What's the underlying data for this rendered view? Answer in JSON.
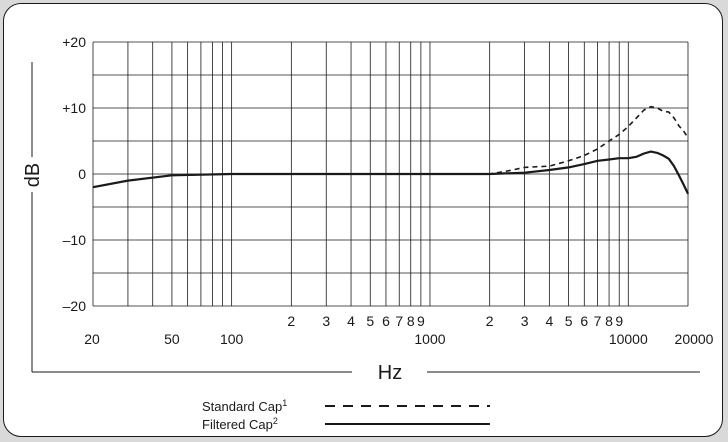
{
  "chart_data": {
    "type": "line",
    "xlabel": "Hz",
    "ylabel": "dB",
    "x_scale": "log",
    "xlim": [
      20,
      20000
    ],
    "ylim": [
      -20,
      20
    ],
    "grid": true,
    "legend_position": "bottom",
    "y_ticks": [
      {
        "value": 20,
        "label": "+20"
      },
      {
        "value": 10,
        "label": "+10"
      },
      {
        "value": 0,
        "label": "0"
      },
      {
        "value": -10,
        "label": "–10"
      },
      {
        "value": -20,
        "label": "–20"
      }
    ],
    "x_ticks": [
      {
        "value": 20,
        "label": "20"
      },
      {
        "value": 50,
        "label": "50"
      },
      {
        "value": 100,
        "label": "100"
      },
      {
        "value": 200,
        "label": "2"
      },
      {
        "value": 300,
        "label": "3"
      },
      {
        "value": 400,
        "label": "4"
      },
      {
        "value": 500,
        "label": "5"
      },
      {
        "value": 600,
        "label": "6"
      },
      {
        "value": 700,
        "label": "7"
      },
      {
        "value": 800,
        "label": "8"
      },
      {
        "value": 900,
        "label": "9"
      },
      {
        "value": 1000,
        "label": "1000"
      },
      {
        "value": 2000,
        "label": "2"
      },
      {
        "value": 3000,
        "label": "3"
      },
      {
        "value": 4000,
        "label": "4"
      },
      {
        "value": 5000,
        "label": "5"
      },
      {
        "value": 6000,
        "label": "6"
      },
      {
        "value": 7000,
        "label": "7"
      },
      {
        "value": 8000,
        "label": "8"
      },
      {
        "value": 9000,
        "label": "9"
      },
      {
        "value": 10000,
        "label": "10000"
      },
      {
        "value": 20000,
        "label": "20000"
      }
    ],
    "series": [
      {
        "name": "Standard Cap",
        "superscript": "1",
        "style": "dashed",
        "color": "#1a1a1a",
        "x": [
          20,
          30,
          50,
          100,
          200,
          500,
          1000,
          2000,
          2500,
          3000,
          4000,
          5000,
          6000,
          7000,
          8000,
          9000,
          10000,
          11000,
          12000,
          13000,
          14000,
          15000,
          16000,
          17000,
          18000,
          19000,
          20000
        ],
        "y": [
          -2,
          -1,
          -0.2,
          0,
          0,
          0,
          0,
          0,
          0.5,
          1,
          1.2,
          2,
          2.8,
          3.8,
          5,
          6,
          7.2,
          8.5,
          9.7,
          10.2,
          10,
          9.5,
          9.4,
          8.5,
          7.3,
          6.5,
          5.5
        ]
      },
      {
        "name": "Filtered Cap",
        "superscript": "2",
        "style": "solid",
        "color": "#1a1a1a",
        "x": [
          20,
          30,
          50,
          100,
          200,
          500,
          1000,
          2000,
          3000,
          4000,
          5000,
          6000,
          7000,
          8000,
          9000,
          10000,
          11000,
          12000,
          13000,
          14000,
          15000,
          16000,
          17000,
          18000,
          19000,
          20000
        ],
        "y": [
          -2,
          -1,
          -0.2,
          0,
          0,
          0,
          0,
          0,
          0.2,
          0.6,
          1,
          1.5,
          2,
          2.2,
          2.4,
          2.4,
          2.6,
          3.1,
          3.4,
          3.2,
          2.8,
          2.3,
          1.2,
          -0.2,
          -1.6,
          -3
        ]
      }
    ]
  }
}
